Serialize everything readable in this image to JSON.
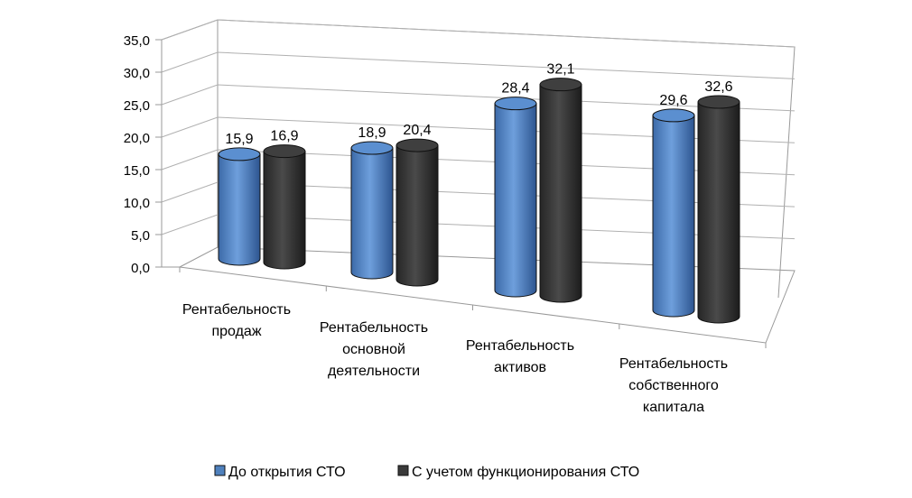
{
  "chart_data": {
    "type": "bar",
    "title": "",
    "xlabel": "",
    "ylabel": "",
    "ylim": [
      0,
      35
    ],
    "yticks": [
      "0,0",
      "5,0",
      "10,0",
      "15,0",
      "20,0",
      "25,0",
      "30,0",
      "35,0"
    ],
    "grid": true,
    "legend_position": "bottom",
    "categories": [
      [
        "Рентабельность",
        "продаж"
      ],
      [
        "Рентабельность",
        "основной",
        "деятельности"
      ],
      [
        "Рентабельность",
        "активов"
      ],
      [
        "Рентабельность",
        "собственного",
        "капитала"
      ]
    ],
    "series": [
      {
        "name": "До открытия СТО",
        "values": [
          15.9,
          18.9,
          28.4,
          29.6
        ],
        "labels": [
          "15,9",
          "18,9",
          "28,4",
          "29,6"
        ],
        "color": "#4f81bd"
      },
      {
        "name": "С учетом функционирования СТО",
        "values": [
          16.9,
          20.4,
          32.1,
          32.6
        ],
        "labels": [
          "16,9",
          "20,4",
          "32,1",
          "32,6"
        ],
        "color": "#3a3a3a"
      }
    ]
  }
}
